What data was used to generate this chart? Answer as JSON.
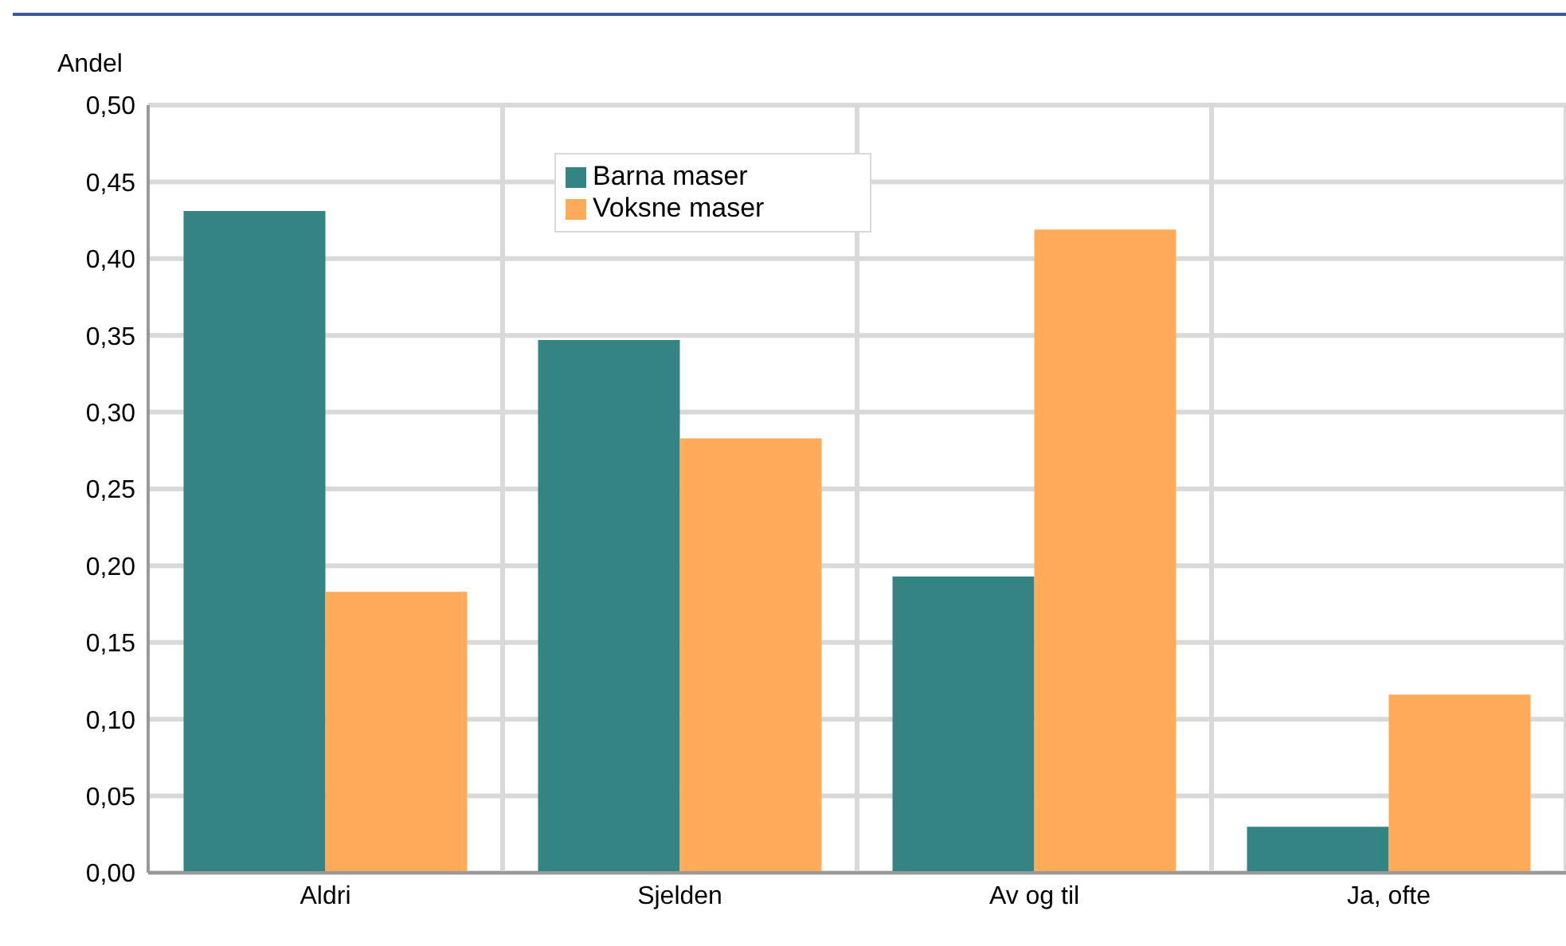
{
  "chart_data": {
    "type": "bar",
    "ylabel": "Andel",
    "categories": [
      "Aldri",
      "Sjelden",
      "Av og til",
      "Ja, ofte"
    ],
    "series": [
      {
        "name": "Barna maser",
        "color": "#358484",
        "values": [
          0.431,
          0.347,
          0.193,
          0.03
        ]
      },
      {
        "name": "Voksne maser",
        "color": "#ffab5a",
        "values": [
          0.183,
          0.283,
          0.419,
          0.116
        ]
      }
    ],
    "ylim": [
      0,
      0.5
    ],
    "yticks": [
      {
        "value": 0,
        "label": "0,00"
      },
      {
        "value": 0.05,
        "label": "0,05"
      },
      {
        "value": 0.1,
        "label": "0,10"
      },
      {
        "value": 0.15,
        "label": "0,15"
      },
      {
        "value": 0.2,
        "label": "0,20"
      },
      {
        "value": 0.25,
        "label": "0,25"
      },
      {
        "value": 0.3,
        "label": "0,30"
      },
      {
        "value": 0.35,
        "label": "0,35"
      },
      {
        "value": 0.4,
        "label": "0,40"
      },
      {
        "value": 0.45,
        "label": "0,45"
      },
      {
        "value": 0.5,
        "label": "0,50"
      }
    ],
    "grid": true,
    "legend": "top"
  }
}
